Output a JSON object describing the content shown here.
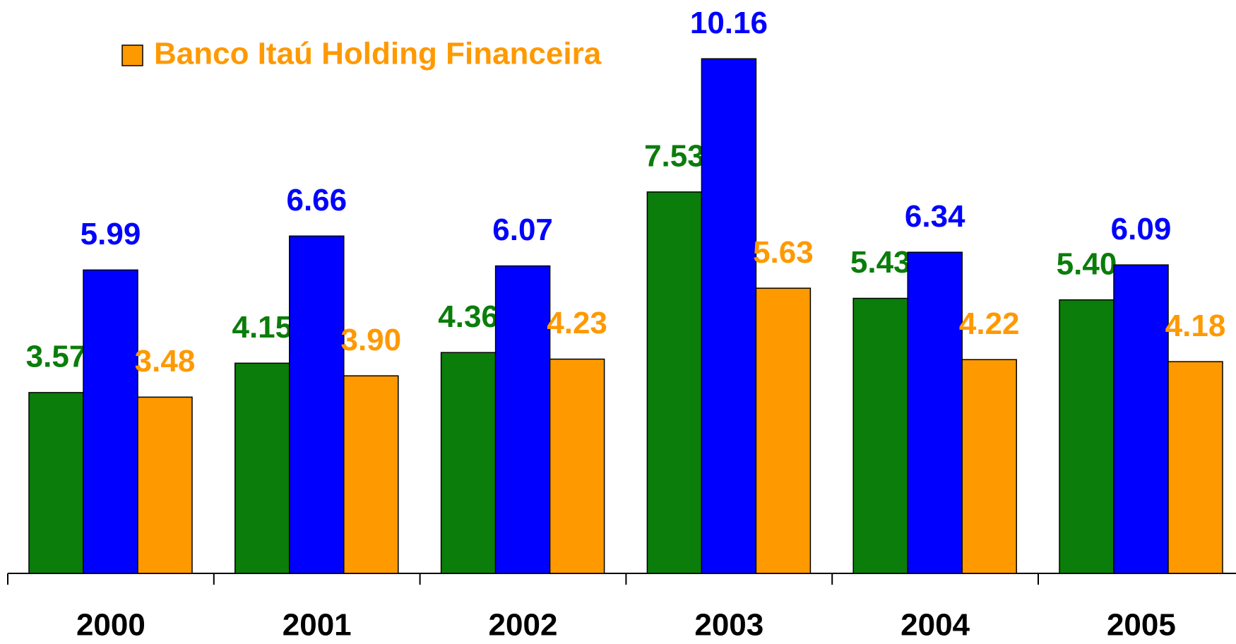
{
  "chart_data": {
    "type": "bar",
    "categories": [
      "2000",
      "2001",
      "2002",
      "2003",
      "2004",
      "2005"
    ],
    "series": [
      {
        "color": "#0a7d0a",
        "values": [
          3.57,
          4.15,
          4.36,
          7.53,
          5.43,
          5.4
        ],
        "value_labels": [
          "3.57",
          "4.15",
          "4.36",
          "7.53",
          "5.43",
          "5.40"
        ]
      },
      {
        "color": "#0000ff",
        "values": [
          5.99,
          6.66,
          6.07,
          10.16,
          6.34,
          6.09
        ],
        "value_labels": [
          "5.99",
          "6.66",
          "6.07",
          "10.16",
          "6.34",
          "6.09"
        ]
      },
      {
        "name": "Banco Itaú Holding Financeira",
        "color": "#ff9900",
        "values": [
          3.48,
          3.9,
          4.23,
          5.63,
          4.22,
          4.18
        ],
        "value_labels": [
          "3.48",
          "3.90",
          "4.23",
          "5.63",
          "4.22",
          "4.18"
        ]
      }
    ],
    "ylim": [
      0,
      11.32
    ]
  }
}
